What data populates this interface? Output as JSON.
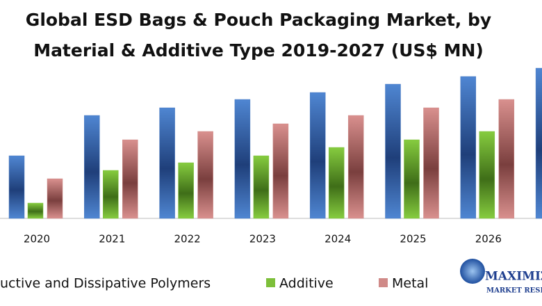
{
  "chart_data": {
    "type": "bar",
    "title_lines": [
      "Global ESD Bags & Pouch Packaging Market, by",
      "Material & Additive Type 2019-2027 (US$ MN)"
    ],
    "categories": [
      "2020",
      "2021",
      "2022",
      "2023",
      "2024",
      "2025",
      "2026",
      null
    ],
    "series": [
      {
        "name": "uctive and Dissipative Polymers",
        "color": "#4a7cc4",
        "values": [
          90,
          148,
          159,
          171,
          181,
          193,
          204,
          216
        ]
      },
      {
        "name": "Additive",
        "color": "#7dbf3a",
        "values": [
          22,
          69,
          80,
          90,
          102,
          113,
          125,
          null
        ]
      },
      {
        "name": "Metal",
        "color": "#d08a88",
        "values": [
          57,
          113,
          125,
          136,
          148,
          159,
          171,
          null
        ]
      }
    ],
    "ylim": [
      0,
      314
    ],
    "logo": [
      "MAXIMIZ",
      "MARKET RESEAR"
    ]
  }
}
